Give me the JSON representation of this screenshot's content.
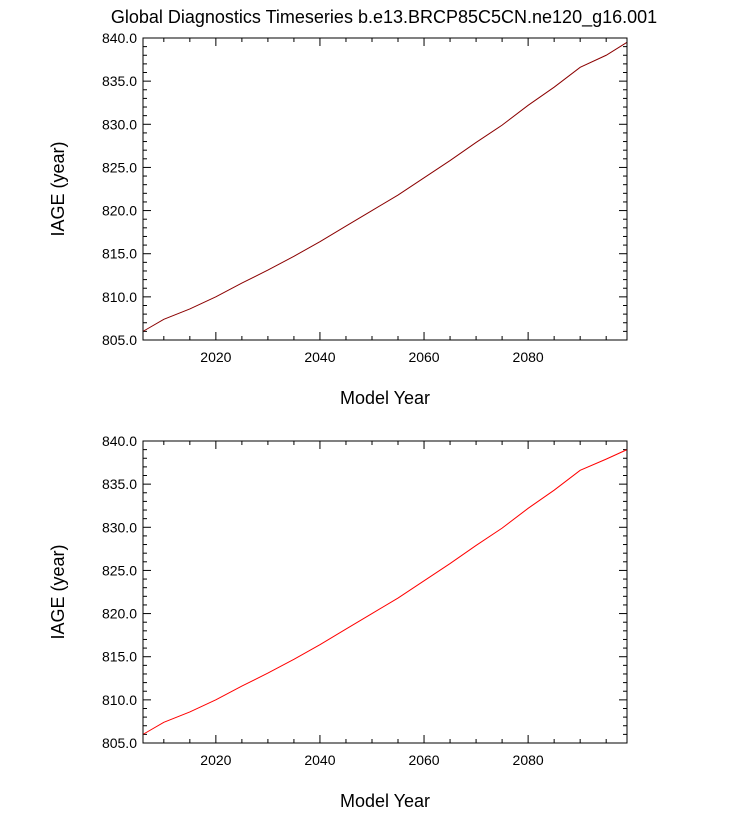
{
  "title": "Global Diagnostics Timeseries b.e13.BRCP85C5CN.ne120_g16.001",
  "chart_data": [
    {
      "type": "line",
      "xlabel": "Model Year",
      "ylabel": "IAGE (year)",
      "xlim": [
        2006,
        2099
      ],
      "ylim": [
        805.0,
        840.0
      ],
      "xticks": [
        2020,
        2040,
        2060,
        2080
      ],
      "xtick_labels": [
        "2020",
        "2040",
        "2060",
        "2080"
      ],
      "yticks": [
        805.0,
        810.0,
        815.0,
        820.0,
        825.0,
        830.0,
        835.0,
        840.0
      ],
      "ytick_labels": [
        "805.0",
        "810.0",
        "815.0",
        "820.0",
        "825.0",
        "830.0",
        "835.0",
        "840.0"
      ],
      "series": [
        {
          "color": "#8b0000",
          "x": [
            2006,
            2010,
            2015,
            2020,
            2025,
            2030,
            2035,
            2040,
            2045,
            2050,
            2055,
            2060,
            2065,
            2070,
            2075,
            2080,
            2085,
            2090,
            2095,
            2099
          ],
          "y": [
            806.0,
            807.4,
            808.6,
            810.0,
            811.6,
            813.1,
            814.7,
            816.4,
            818.2,
            820.0,
            821.8,
            823.8,
            825.8,
            827.9,
            829.9,
            832.2,
            834.3,
            836.6,
            838.0,
            839.5
          ]
        }
      ]
    },
    {
      "type": "line",
      "xlabel": "Model Year",
      "ylabel": "IAGE (year)",
      "xlim": [
        2006,
        2099
      ],
      "ylim": [
        805.0,
        840.0
      ],
      "xticks": [
        2020,
        2040,
        2060,
        2080
      ],
      "xtick_labels": [
        "2020",
        "2040",
        "2060",
        "2080"
      ],
      "yticks": [
        805.0,
        810.0,
        815.0,
        820.0,
        825.0,
        830.0,
        835.0,
        840.0
      ],
      "ytick_labels": [
        "805.0",
        "810.0",
        "815.0",
        "820.0",
        "825.0",
        "830.0",
        "835.0",
        "840.0"
      ],
      "series": [
        {
          "color": "#ff0000",
          "x": [
            2006,
            2010,
            2015,
            2020,
            2025,
            2030,
            2035,
            2040,
            2045,
            2050,
            2055,
            2060,
            2065,
            2070,
            2075,
            2080,
            2085,
            2090,
            2095,
            2099
          ],
          "y": [
            806.0,
            807.4,
            808.6,
            810.0,
            811.6,
            813.1,
            814.7,
            816.4,
            818.2,
            820.0,
            821.8,
            823.8,
            825.8,
            827.9,
            829.9,
            832.2,
            834.3,
            836.6,
            837.9,
            839.0
          ]
        }
      ]
    }
  ]
}
